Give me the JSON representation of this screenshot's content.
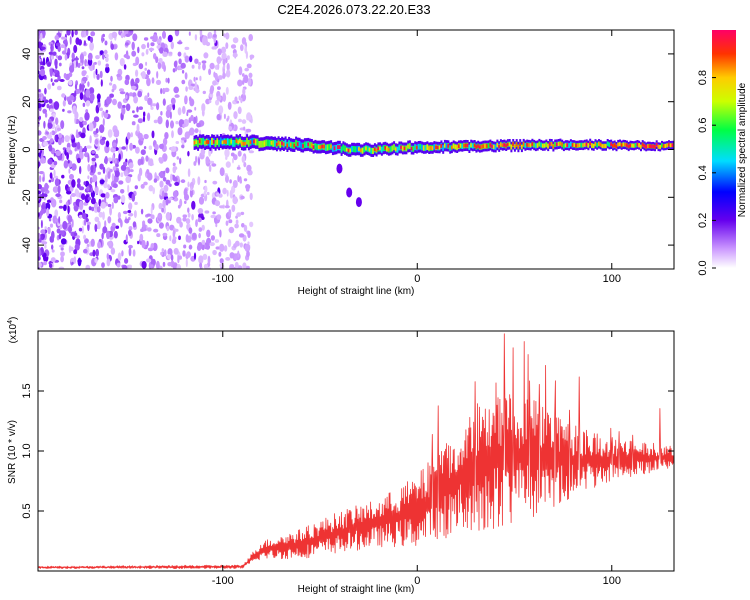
{
  "title": "C2E4.2026.073.22.20.E33",
  "chart_data": [
    {
      "type": "heatmap",
      "xlabel": "Height of straight line (km)",
      "ylabel": "Frequency (Hz)",
      "xlim": [
        -195,
        132
      ],
      "ylim": [
        -50,
        50
      ],
      "x_ticks": [
        -100,
        0,
        100
      ],
      "y_ticks": [
        -40,
        -20,
        0,
        20,
        40
      ],
      "noise_region_x": [
        -195,
        -85
      ],
      "signal_band": {
        "x_start": -115,
        "x_end": 132,
        "center_hz": [
          {
            "x": -115,
            "y": 3
          },
          {
            "x": -90,
            "y": 3
          },
          {
            "x": -60,
            "y": 2
          },
          {
            "x": -35,
            "y": 0
          },
          {
            "x": -20,
            "y": 0
          },
          {
            "x": 0,
            "y": 1
          },
          {
            "x": 40,
            "y": 1.5
          },
          {
            "x": 80,
            "y": 2
          },
          {
            "x": 132,
            "y": 1.5
          }
        ],
        "width_hz": 6
      },
      "colorbar": {
        "label": "Normalized spectral amplitude",
        "range": [
          0,
          1
        ],
        "ticks": [
          "0.0",
          "0.2",
          "0.4",
          "0.6",
          "0.8"
        ]
      }
    },
    {
      "type": "line",
      "xlabel": "Height of straight line (km)",
      "ylabel": "SNR (10 * v/v)",
      "y_multiplier": "(x10",
      "y_multiplier_exp": "4",
      "xlim": [
        -195,
        132
      ],
      "ylim": [
        0,
        2.0
      ],
      "x_ticks": [
        -100,
        0,
        100
      ],
      "y_ticks": [
        "0.5",
        "1.0",
        "1.5"
      ],
      "line_color": "#ee3333",
      "envelope": [
        {
          "x": -195,
          "lo": 0.02,
          "hi": 0.04
        },
        {
          "x": -90,
          "lo": 0.02,
          "hi": 0.05
        },
        {
          "x": -80,
          "lo": 0.1,
          "hi": 0.25
        },
        {
          "x": -60,
          "lo": 0.1,
          "hi": 0.35
        },
        {
          "x": -40,
          "lo": 0.15,
          "hi": 0.5
        },
        {
          "x": -20,
          "lo": 0.2,
          "hi": 0.6
        },
        {
          "x": 0,
          "lo": 0.2,
          "hi": 0.8
        },
        {
          "x": 20,
          "lo": 0.3,
          "hi": 1.2
        },
        {
          "x": 40,
          "lo": 0.35,
          "hi": 1.6
        },
        {
          "x": 60,
          "lo": 0.45,
          "hi": 1.45
        },
        {
          "x": 80,
          "lo": 0.6,
          "hi": 1.25
        },
        {
          "x": 100,
          "lo": 0.75,
          "hi": 1.1
        },
        {
          "x": 132,
          "lo": 0.85,
          "hi": 1.05
        }
      ]
    }
  ]
}
